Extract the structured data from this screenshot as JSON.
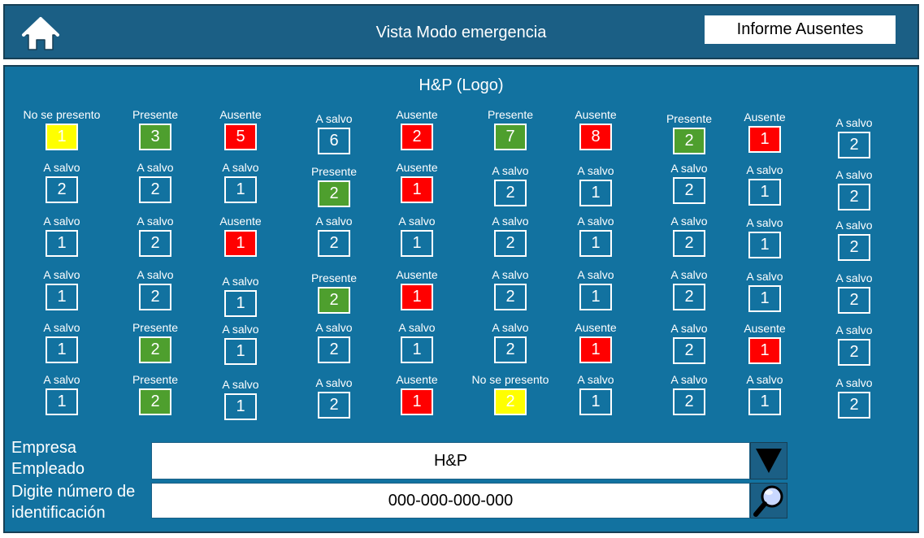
{
  "header": {
    "title": "Vista Modo emergencia",
    "report_button": "Informe Ausentes"
  },
  "main": {
    "logo_title": "H&P (Logo)"
  },
  "icons": {
    "home": "home-icon",
    "dropdown": "triangle-down-icon",
    "search": "magnifier-icon"
  },
  "colors": {
    "header_bg": "#1b5f85",
    "panel_bg": "#1272a0",
    "present": "#4e9f2e",
    "absent": "#ff0000",
    "no_show": "#ffff00"
  },
  "grid": {
    "columns": [
      [
        {
          "label": "No se presento",
          "value": "1",
          "status": "noshow"
        },
        {
          "label": "A salvo",
          "value": "2",
          "status": "safe"
        },
        {
          "label": "A salvo",
          "value": "1",
          "status": "safe"
        },
        {
          "label": "A salvo",
          "value": "1",
          "status": "safe"
        },
        {
          "label": "A salvo",
          "value": "1",
          "status": "safe"
        },
        {
          "label": "A salvo",
          "value": "1",
          "status": "safe"
        }
      ],
      [
        {
          "label": "Presente",
          "value": "3",
          "status": "present"
        },
        {
          "label": "A salvo",
          "value": "2",
          "status": "safe"
        },
        {
          "label": "A salvo",
          "value": "2",
          "status": "safe"
        },
        {
          "label": "A salvo",
          "value": "2",
          "status": "safe"
        },
        {
          "label": "Presente",
          "value": "2",
          "status": "present"
        },
        {
          "label": "Presente",
          "value": "2",
          "status": "present"
        }
      ],
      [
        {
          "label": "Ausente",
          "value": "5",
          "status": "absent"
        },
        {
          "label": "A salvo",
          "value": "1",
          "status": "safe"
        },
        {
          "label": "Ausente",
          "value": "1",
          "status": "absent"
        },
        {
          "label": "A salvo",
          "value": "1",
          "status": "safe"
        },
        {
          "label": "A salvo",
          "value": "1",
          "status": "safe"
        },
        {
          "label": "A salvo",
          "value": "1",
          "status": "safe"
        }
      ],
      [
        {
          "label": "A salvo",
          "value": "6",
          "status": "safe"
        },
        {
          "label": "Presente",
          "value": "2",
          "status": "present"
        },
        {
          "label": "A salvo",
          "value": "2",
          "status": "safe"
        },
        {
          "label": "Presente",
          "value": "2",
          "status": "present"
        },
        {
          "label": "A salvo",
          "value": "2",
          "status": "safe"
        },
        {
          "label": "A salvo",
          "value": "2",
          "status": "safe"
        }
      ],
      [
        {
          "label": "Ausente",
          "value": "2",
          "status": "absent"
        },
        {
          "label": "Ausente",
          "value": "1",
          "status": "absent"
        },
        {
          "label": "A salvo",
          "value": "1",
          "status": "safe"
        },
        {
          "label": "Ausente",
          "value": "1",
          "status": "absent"
        },
        {
          "label": "A salvo",
          "value": "1",
          "status": "safe"
        },
        {
          "label": "Ausente",
          "value": "1",
          "status": "absent"
        }
      ],
      [
        {
          "label": "Presente",
          "value": "7",
          "status": "present"
        },
        {
          "label": "A salvo",
          "value": "2",
          "status": "safe"
        },
        {
          "label": "A salvo",
          "value": "2",
          "status": "safe"
        },
        {
          "label": "A salvo",
          "value": "2",
          "status": "safe"
        },
        {
          "label": "A salvo",
          "value": "2",
          "status": "safe"
        },
        {
          "label": "No se presento",
          "value": "2",
          "status": "noshow"
        }
      ],
      [
        {
          "label": "Ausente",
          "value": "8",
          "status": "absent"
        },
        {
          "label": "A salvo",
          "value": "1",
          "status": "safe"
        },
        {
          "label": "A salvo",
          "value": "1",
          "status": "safe"
        },
        {
          "label": "A salvo",
          "value": "1",
          "status": "safe"
        },
        {
          "label": "Ausente",
          "value": "1",
          "status": "absent"
        },
        {
          "label": "A salvo",
          "value": "1",
          "status": "safe"
        }
      ],
      [
        {
          "label": "Presente",
          "value": "2",
          "status": "present"
        },
        {
          "label": "A salvo",
          "value": "2",
          "status": "safe"
        },
        {
          "label": "A salvo",
          "value": "2",
          "status": "safe"
        },
        {
          "label": "A salvo",
          "value": "2",
          "status": "safe"
        },
        {
          "label": "A salvo",
          "value": "2",
          "status": "safe"
        },
        {
          "label": "A salvo",
          "value": "2",
          "status": "safe"
        }
      ],
      [
        {
          "label": "Ausente",
          "value": "1",
          "status": "absent"
        },
        {
          "label": "A salvo",
          "value": "1",
          "status": "safe"
        },
        {
          "label": "A salvo",
          "value": "1",
          "status": "safe"
        },
        {
          "label": "A salvo",
          "value": "1",
          "status": "safe"
        },
        {
          "label": "Ausente",
          "value": "1",
          "status": "absent"
        },
        {
          "label": "A salvo",
          "value": "1",
          "status": "safe"
        }
      ],
      [
        {
          "label": "A salvo",
          "value": "2",
          "status": "safe"
        },
        {
          "label": "A salvo",
          "value": "2",
          "status": "safe"
        },
        {
          "label": "A salvo",
          "value": "2",
          "status": "safe"
        },
        {
          "label": "A salvo",
          "value": "2",
          "status": "safe"
        },
        {
          "label": "A salvo",
          "value": "2",
          "status": "safe"
        },
        {
          "label": "A salvo",
          "value": "2",
          "status": "safe"
        }
      ]
    ]
  },
  "form": {
    "company_label_line1": "Empresa",
    "company_label_line2": "Empleado",
    "company_value": "H&P",
    "id_label_line1": "Digite número de",
    "id_label_line2": "identificación",
    "id_value": "000-000-000-000"
  }
}
